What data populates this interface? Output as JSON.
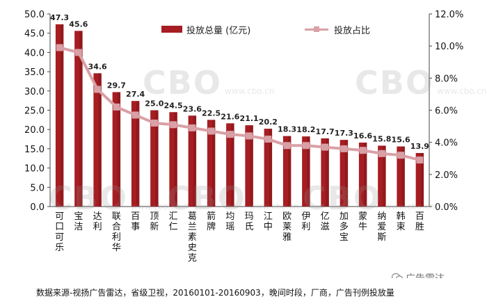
{
  "chart_data": {
    "type": "bar",
    "categories": [
      "可口可乐",
      "宝洁",
      "达利",
      "联合利华",
      "百事",
      "顶新",
      "汇仁",
      "葛兰素史克",
      "箭牌",
      "均瑶",
      "玛氏",
      "江中",
      "欧莱雅",
      "伊利",
      "亿滋",
      "加多宝",
      "蒙牛",
      "纳爱斯",
      "韩束",
      "百胜"
    ],
    "series": [
      {
        "name": "投放总量  (亿元)",
        "axis": "left",
        "type": "bar",
        "color": "#a61d22",
        "values": [
          47.3,
          45.6,
          34.6,
          29.7,
          27.4,
          25.0,
          24.5,
          23.6,
          22.5,
          21.6,
          21.1,
          20.2,
          18.3,
          18.2,
          17.7,
          17.3,
          16.6,
          15.8,
          15.6,
          13.9
        ],
        "labels": [
          "47.3",
          "45.6",
          "34.6",
          "29.7",
          "27.4",
          "25.0",
          "24.5",
          "23.6",
          "22.5",
          "21.6",
          "21.1",
          "20.2",
          "18.3",
          "18.2",
          "17.7",
          "17.3",
          "16.6",
          "15.8",
          "15.6",
          "13.9"
        ]
      },
      {
        "name": "投放占比",
        "axis": "right",
        "type": "line",
        "color": "#d9a0a6",
        "values": [
          9.9,
          9.6,
          7.3,
          6.2,
          5.7,
          5.2,
          5.1,
          4.9,
          4.7,
          4.5,
          4.4,
          4.2,
          3.8,
          3.8,
          3.7,
          3.6,
          3.5,
          3.3,
          3.2,
          2.9
        ]
      }
    ],
    "ylim": [
      0,
      50
    ],
    "yticks": [
      "0.0",
      "5.0",
      "10.0",
      "15.0",
      "20.0",
      "25.0",
      "30.0",
      "35.0",
      "40.0",
      "45.0",
      "50.0"
    ],
    "y2lim": [
      0,
      12
    ],
    "y2ticks": [
      "0.0%",
      "2.0%",
      "4.0%",
      "6.0%",
      "8.0%",
      "10.0%",
      "12.0%"
    ],
    "legend_position": "top-center",
    "grid": false
  },
  "watermarks": [
    {
      "text": "CBO",
      "sub": "www.cbo.cn"
    },
    {
      "text": "CBO",
      "sub": "www.cbo.cn"
    },
    {
      "text": "CBO",
      "sub": "www.cbo.cn"
    },
    {
      "text": "CBO",
      "sub": "www.cbo.cn"
    },
    {
      "text": "CBO",
      "sub": "www.cbo.cn"
    }
  ],
  "footer_note": "数据来源-视扬广告雷达，省级卫视，20160101-20160903，晚间时段，厂商，广告刊例投放量",
  "brand": "广告雷达"
}
